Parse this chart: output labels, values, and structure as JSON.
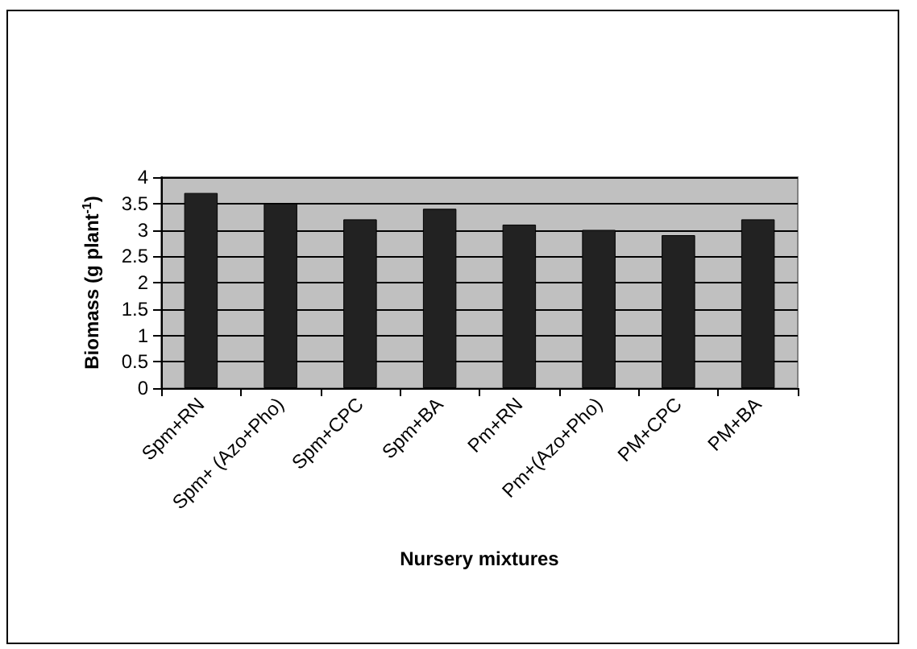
{
  "chart_data": {
    "type": "bar",
    "xlabel": "Nursery mixtures",
    "ylabel": "Biomass (g plant$^{-1}$)",
    "categories": [
      "Spm+RN",
      "Spm+ (Azo+Pho)",
      "Spm+CPC",
      "Spm+BA",
      "Pm+RN",
      "Pm+(Azo+Pho)",
      "PM+CPC",
      "PM+BA"
    ],
    "values": [
      3.7,
      3.5,
      3.2,
      3.4,
      3.1,
      3.0,
      2.9,
      3.2
    ],
    "color": "#222222",
    "ylim": [
      0,
      4
    ],
    "yticks": [
      0,
      0.5,
      1,
      1.5,
      2,
      2.5,
      3,
      3.5,
      4
    ],
    "grid": "y"
  }
}
